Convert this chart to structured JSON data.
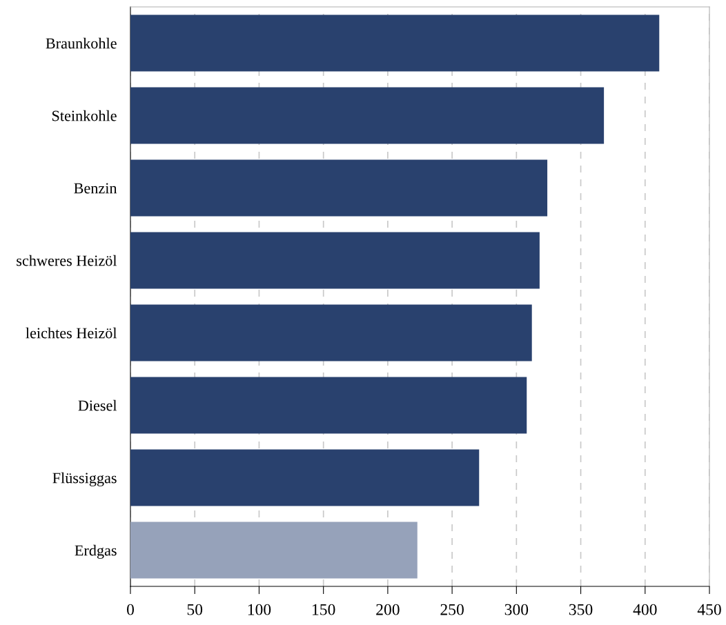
{
  "chart_data": {
    "type": "bar",
    "orientation": "horizontal",
    "categories": [
      "Braunkohle",
      "Steinkohle",
      "Benzin",
      "schweres Heizöl",
      "leichtes Heizöl",
      "Diesel",
      "Flüssiggas",
      "Erdgas"
    ],
    "values": [
      411,
      368,
      324,
      318,
      312,
      308,
      271,
      223
    ],
    "colors": [
      "#29416e",
      "#29416e",
      "#29416e",
      "#29416e",
      "#29416e",
      "#29416e",
      "#29416e",
      "#96a2ba"
    ],
    "xlim": [
      0,
      450
    ],
    "xticks": [
      0,
      50,
      100,
      150,
      200,
      250,
      300,
      350,
      400,
      450
    ],
    "grid": "x",
    "line_style": "dashed"
  }
}
